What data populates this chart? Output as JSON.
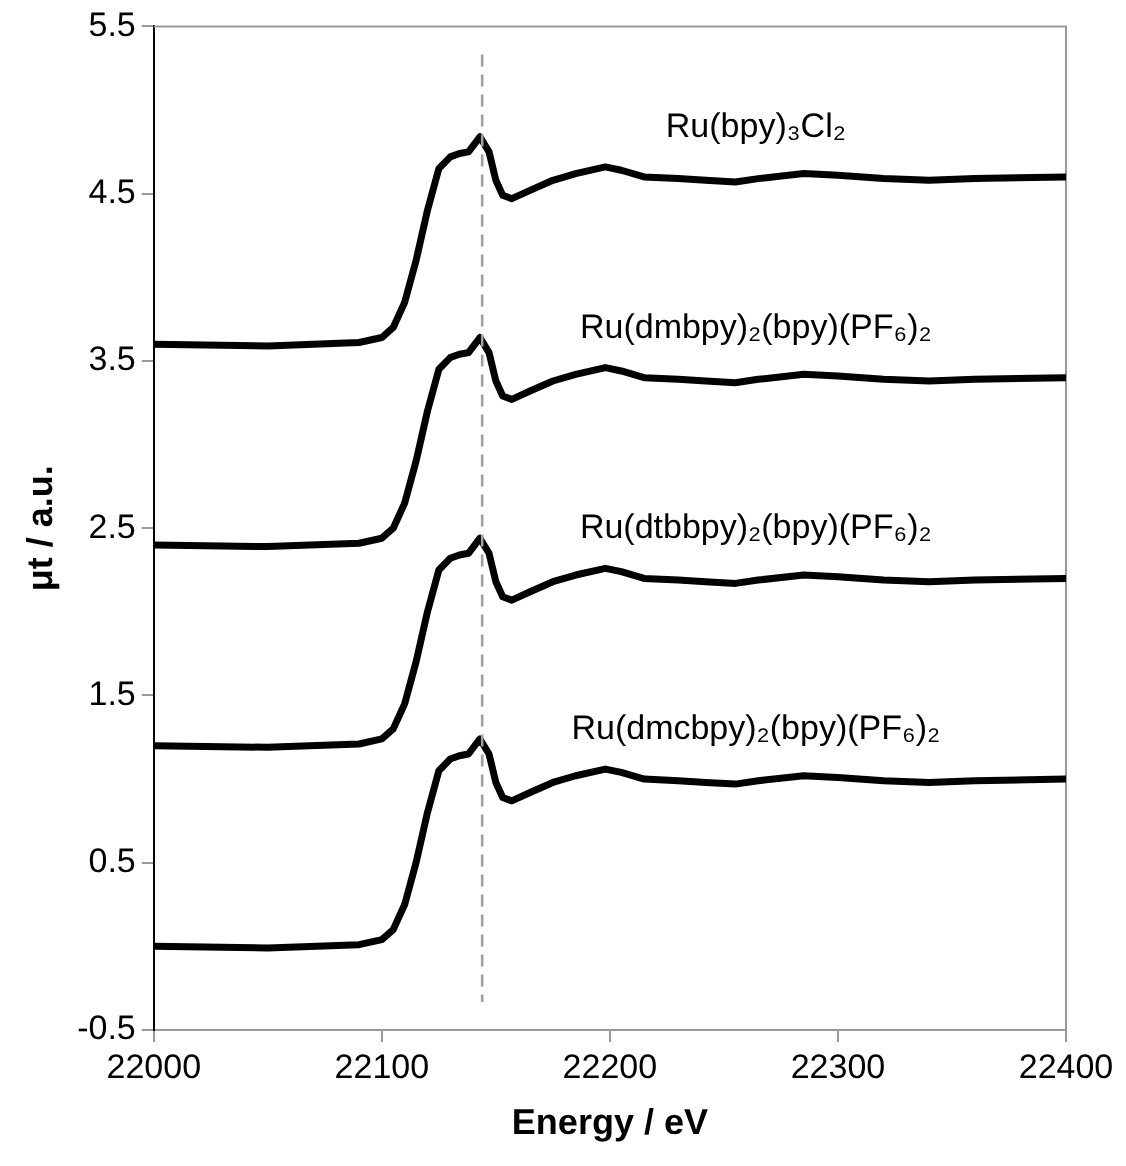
{
  "chart_data": {
    "type": "line",
    "xlabel": "Energy / eV",
    "ylabel": "μt / a.u.",
    "x": [
      22000,
      22050,
      22090,
      22100,
      22105,
      22110,
      22115,
      22120,
      22125,
      22130,
      22134,
      22138,
      22143,
      22147,
      22150,
      22153,
      22157,
      22165,
      22175,
      22185,
      22198,
      22205,
      22215,
      22230,
      22242,
      22255,
      22265,
      22285,
      22300,
      22320,
      22340,
      22360,
      22400
    ],
    "series": [
      {
        "name": "Ru(bpy)₃Cl₂",
        "color": "#000000",
        "values": [
          3.6,
          3.59,
          3.61,
          3.64,
          3.7,
          3.85,
          4.1,
          4.4,
          4.65,
          4.72,
          4.74,
          4.75,
          4.84,
          4.75,
          4.58,
          4.49,
          4.47,
          4.52,
          4.58,
          4.62,
          4.66,
          4.64,
          4.6,
          4.59,
          4.58,
          4.57,
          4.59,
          4.62,
          4.61,
          4.59,
          4.58,
          4.59,
          4.6
        ]
      },
      {
        "name": "Ru(dmbpy)₂(bpy)(PF₆)₂",
        "color": "#000000",
        "values": [
          2.4,
          2.39,
          2.41,
          2.44,
          2.5,
          2.65,
          2.9,
          3.2,
          3.45,
          3.52,
          3.54,
          3.55,
          3.64,
          3.55,
          3.38,
          3.29,
          3.27,
          3.32,
          3.38,
          3.42,
          3.46,
          3.44,
          3.4,
          3.39,
          3.38,
          3.37,
          3.39,
          3.42,
          3.41,
          3.39,
          3.38,
          3.39,
          3.4
        ]
      },
      {
        "name": "Ru(dtbbpy)₂(bpy)(PF₆)₂",
        "color": "#000000",
        "values": [
          1.2,
          1.19,
          1.21,
          1.24,
          1.3,
          1.45,
          1.7,
          2.0,
          2.25,
          2.32,
          2.34,
          2.35,
          2.44,
          2.35,
          2.18,
          2.09,
          2.07,
          2.12,
          2.18,
          2.22,
          2.26,
          2.24,
          2.2,
          2.19,
          2.18,
          2.17,
          2.19,
          2.22,
          2.21,
          2.19,
          2.18,
          2.19,
          2.2
        ]
      },
      {
        "name": "Ru(dmcbpy)₂(bpy)(PF₆)₂",
        "color": "#000000",
        "values": [
          0.0,
          -0.01,
          0.01,
          0.04,
          0.1,
          0.25,
          0.5,
          0.8,
          1.05,
          1.12,
          1.14,
          1.15,
          1.24,
          1.15,
          0.98,
          0.89,
          0.87,
          0.92,
          0.98,
          1.02,
          1.06,
          1.04,
          1.0,
          0.99,
          0.98,
          0.97,
          0.99,
          1.02,
          1.01,
          0.99,
          0.98,
          0.99,
          1.0
        ]
      }
    ],
    "xlim": [
      22000,
      22400
    ],
    "xticks": [
      22000,
      22100,
      22200,
      22300,
      22400
    ],
    "ylim": [
      -0.5,
      5.5
    ],
    "yticks": [
      -0.5,
      0.5,
      1.5,
      2.5,
      3.5,
      4.5,
      5.5
    ],
    "ref_lines": [
      {
        "axis": "x",
        "value": 22144,
        "color": "#a0a0a0",
        "line_style": "dashed"
      }
    ],
    "grid": false,
    "legend": false,
    "marker": "none",
    "line_style": "solid"
  }
}
